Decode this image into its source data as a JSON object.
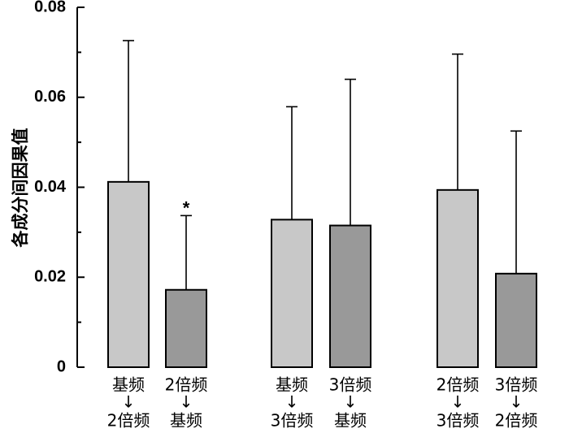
{
  "chart_data": {
    "type": "bar",
    "ylabel": "各成分间因果值",
    "ylim": [
      0,
      0.08
    ],
    "yticks": [
      {
        "value": 0,
        "label": "0"
      },
      {
        "value": 0.02,
        "label": "0.02"
      },
      {
        "value": 0.04,
        "label": "0.04"
      },
      {
        "value": 0.06,
        "label": "0.06"
      },
      {
        "value": 0.08,
        "label": "0.08"
      }
    ],
    "bars": [
      {
        "from": "基频",
        "to": "2倍频",
        "value": 0.0412,
        "error": 0.0314,
        "color": "#c8c8c8",
        "sig": ""
      },
      {
        "from": "2倍频",
        "to": "基频",
        "value": 0.0172,
        "error": 0.0165,
        "color": "#999999",
        "sig": "*"
      },
      {
        "from": "基频",
        "to": "3倍频",
        "value": 0.0328,
        "error": 0.0251,
        "color": "#c8c8c8",
        "sig": ""
      },
      {
        "from": "3倍频",
        "to": "基频",
        "value": 0.0315,
        "error": 0.0325,
        "color": "#999999",
        "sig": ""
      },
      {
        "from": "2倍频",
        "to": "3倍频",
        "value": 0.0394,
        "error": 0.0302,
        "color": "#c8c8c8",
        "sig": ""
      },
      {
        "from": "3倍频",
        "to": "2倍频",
        "value": 0.0208,
        "error": 0.0317,
        "color": "#999999",
        "sig": ""
      }
    ],
    "arrow_symbol": "↓",
    "grid": false,
    "legend": "none"
  }
}
